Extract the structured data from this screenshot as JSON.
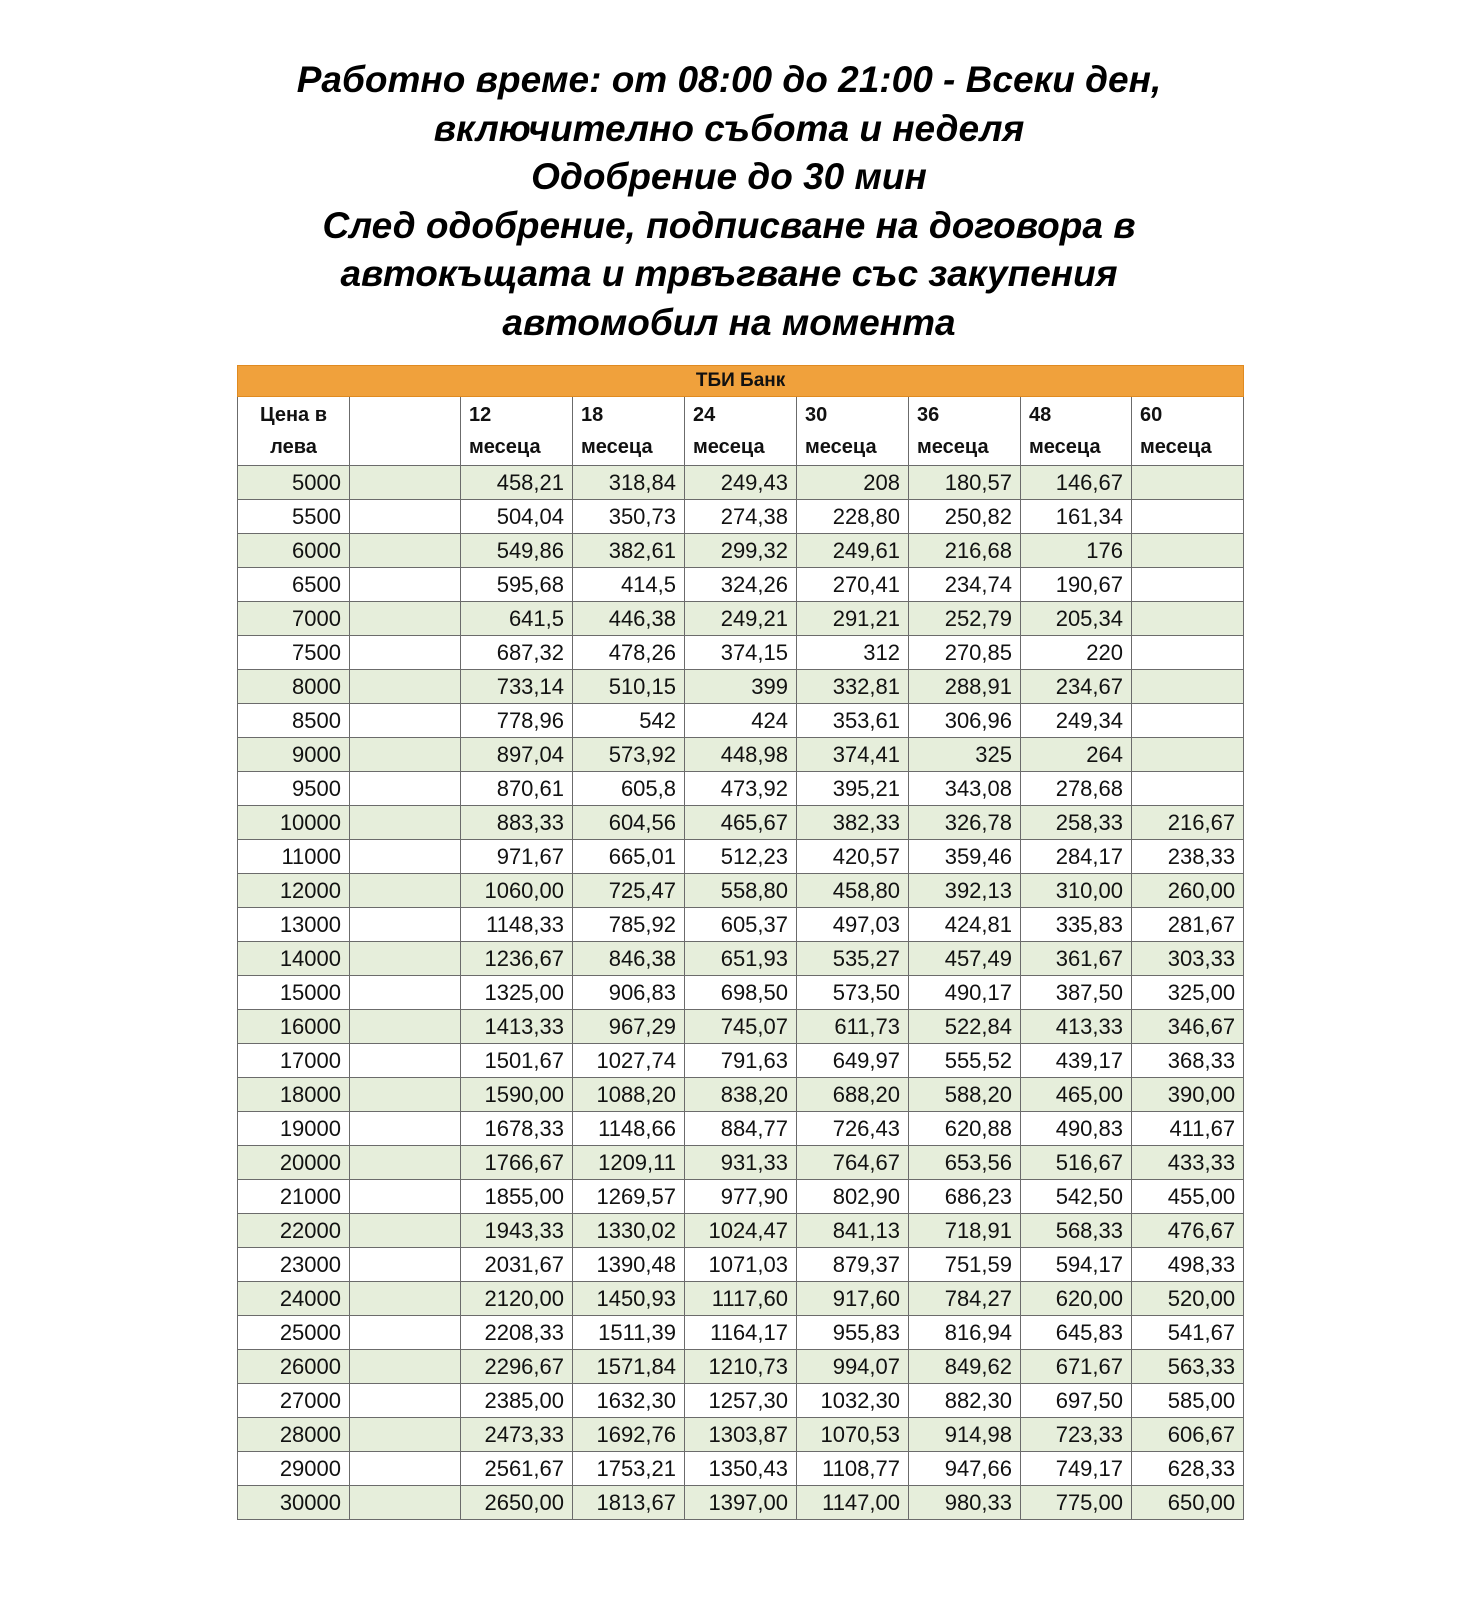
{
  "title_lines": [
    "Работно време: от 08:00 до 21:00 - Всеки ден,",
    "включително събота и неделя",
    "Одобрение до 30 мин",
    "След одобрение, подписване на договора в",
    "автокъщата и трвъгване със закупения",
    "автомобил на момента"
  ],
  "table": {
    "bank": "ТБИ Банк",
    "headers": [
      {
        "line1": "Цена в",
        "line2": "лева"
      },
      {
        "line1": "",
        "line2": ""
      },
      {
        "line1": "12",
        "line2": "месеца"
      },
      {
        "line1": "18",
        "line2": "месеца"
      },
      {
        "line1": "24",
        "line2": "месеца"
      },
      {
        "line1": "30",
        "line2": "месеца"
      },
      {
        "line1": "36",
        "line2": "месеца"
      },
      {
        "line1": "48",
        "line2": "месеца"
      },
      {
        "line1": "60",
        "line2": "месеца"
      }
    ],
    "rows": [
      [
        "5000",
        "",
        "458,21",
        "318,84",
        "249,43",
        "208",
        "180,57",
        "146,67",
        ""
      ],
      [
        "5500",
        "",
        "504,04",
        "350,73",
        "274,38",
        "228,80",
        "250,82",
        "161,34",
        ""
      ],
      [
        "6000",
        "",
        "549,86",
        "382,61",
        "299,32",
        "249,61",
        "216,68",
        "176",
        ""
      ],
      [
        "6500",
        "",
        "595,68",
        "414,5",
        "324,26",
        "270,41",
        "234,74",
        "190,67",
        ""
      ],
      [
        "7000",
        "",
        "641,5",
        "446,38",
        "249,21",
        "291,21",
        "252,79",
        "205,34",
        ""
      ],
      [
        "7500",
        "",
        "687,32",
        "478,26",
        "374,15",
        "312",
        "270,85",
        "220",
        ""
      ],
      [
        "8000",
        "",
        "733,14",
        "510,15",
        "399",
        "332,81",
        "288,91",
        "234,67",
        ""
      ],
      [
        "8500",
        "",
        "778,96",
        "542",
        "424",
        "353,61",
        "306,96",
        "249,34",
        ""
      ],
      [
        "9000",
        "",
        "897,04",
        "573,92",
        "448,98",
        "374,41",
        "325",
        "264",
        ""
      ],
      [
        "9500",
        "",
        "870,61",
        "605,8",
        "473,92",
        "395,21",
        "343,08",
        "278,68",
        ""
      ],
      [
        "10000",
        "",
        "883,33",
        "604,56",
        "465,67",
        "382,33",
        "326,78",
        "258,33",
        "216,67"
      ],
      [
        "11000",
        "",
        "971,67",
        "665,01",
        "512,23",
        "420,57",
        "359,46",
        "284,17",
        "238,33"
      ],
      [
        "12000",
        "",
        "1060,00",
        "725,47",
        "558,80",
        "458,80",
        "392,13",
        "310,00",
        "260,00"
      ],
      [
        "13000",
        "",
        "1148,33",
        "785,92",
        "605,37",
        "497,03",
        "424,81",
        "335,83",
        "281,67"
      ],
      [
        "14000",
        "",
        "1236,67",
        "846,38",
        "651,93",
        "535,27",
        "457,49",
        "361,67",
        "303,33"
      ],
      [
        "15000",
        "",
        "1325,00",
        "906,83",
        "698,50",
        "573,50",
        "490,17",
        "387,50",
        "325,00"
      ],
      [
        "16000",
        "",
        "1413,33",
        "967,29",
        "745,07",
        "611,73",
        "522,84",
        "413,33",
        "346,67"
      ],
      [
        "17000",
        "",
        "1501,67",
        "1027,74",
        "791,63",
        "649,97",
        "555,52",
        "439,17",
        "368,33"
      ],
      [
        "18000",
        "",
        "1590,00",
        "1088,20",
        "838,20",
        "688,20",
        "588,20",
        "465,00",
        "390,00"
      ],
      [
        "19000",
        "",
        "1678,33",
        "1148,66",
        "884,77",
        "726,43",
        "620,88",
        "490,83",
        "411,67"
      ],
      [
        "20000",
        "",
        "1766,67",
        "1209,11",
        "931,33",
        "764,67",
        "653,56",
        "516,67",
        "433,33"
      ],
      [
        "21000",
        "",
        "1855,00",
        "1269,57",
        "977,90",
        "802,90",
        "686,23",
        "542,50",
        "455,00"
      ],
      [
        "22000",
        "",
        "1943,33",
        "1330,02",
        "1024,47",
        "841,13",
        "718,91",
        "568,33",
        "476,67"
      ],
      [
        "23000",
        "",
        "2031,67",
        "1390,48",
        "1071,03",
        "879,37",
        "751,59",
        "594,17",
        "498,33"
      ],
      [
        "24000",
        "",
        "2120,00",
        "1450,93",
        "1117,60",
        "917,60",
        "784,27",
        "620,00",
        "520,00"
      ],
      [
        "25000",
        "",
        "2208,33",
        "1511,39",
        "1164,17",
        "955,83",
        "816,94",
        "645,83",
        "541,67"
      ],
      [
        "26000",
        "",
        "2296,67",
        "1571,84",
        "1210,73",
        "994,07",
        "849,62",
        "671,67",
        "563,33"
      ],
      [
        "27000",
        "",
        "2385,00",
        "1632,30",
        "1257,30",
        "1032,30",
        "882,30",
        "697,50",
        "585,00"
      ],
      [
        "28000",
        "",
        "2473,33",
        "1692,76",
        "1303,87",
        "1070,53",
        "914,98",
        "723,33",
        "606,67"
      ],
      [
        "29000",
        "",
        "2561,67",
        "1753,21",
        "1350,43",
        "1108,77",
        "947,66",
        "749,17",
        "628,33"
      ],
      [
        "30000",
        "",
        "2650,00",
        "1813,67",
        "1397,00",
        "1147,00",
        "980,33",
        "775,00",
        "650,00"
      ]
    ]
  },
  "colors": {
    "bank_header": "#f0a13c",
    "alt_row": "#e6eedb",
    "border": "#6b6b6b"
  }
}
